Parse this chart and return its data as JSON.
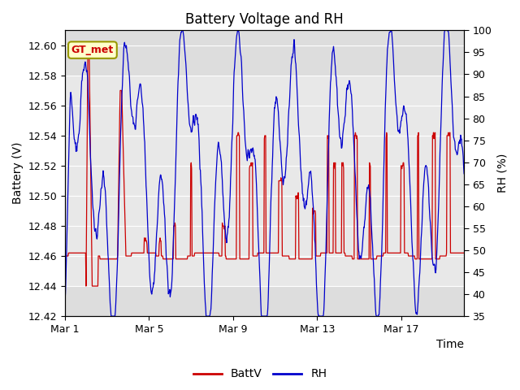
{
  "title": "Battery Voltage and RH",
  "xlabel": "Time",
  "ylabel_left": "Battery (V)",
  "ylabel_right": "RH (%)",
  "ylim_left": [
    12.42,
    12.61
  ],
  "ylim_right": [
    35,
    100
  ],
  "yticks_left": [
    12.42,
    12.44,
    12.46,
    12.48,
    12.5,
    12.52,
    12.54,
    12.56,
    12.58,
    12.6
  ],
  "yticks_right": [
    35,
    40,
    45,
    50,
    55,
    60,
    65,
    70,
    75,
    80,
    85,
    90,
    95,
    100
  ],
  "xtick_labels": [
    "Mar 1",
    "Mar 5",
    "Mar 9",
    "Mar 13",
    "Mar 17"
  ],
  "xtick_positions": [
    0,
    4,
    8,
    12,
    16
  ],
  "xlim": [
    0,
    19
  ],
  "legend_labels": [
    "BattV",
    "RH"
  ],
  "legend_colors": [
    "#cc0000",
    "#0000cc"
  ],
  "line_color_batt": "#cc0000",
  "line_color_rh": "#0000cc",
  "annotation_text": "GT_met",
  "annotation_color": "#cc0000",
  "annotation_bg": "#ffffcc",
  "annotation_border": "#999900",
  "background_outer": "#dddddd",
  "background_inner": "#eeeeee",
  "grid_color": "#ffffff",
  "title_fontsize": 12,
  "axis_fontsize": 10,
  "tick_fontsize": 9,
  "line_width": 0.9
}
